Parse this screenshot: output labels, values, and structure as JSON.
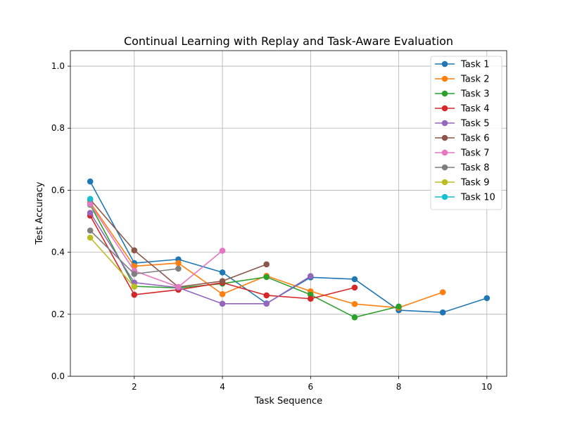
{
  "chart_data": {
    "type": "line",
    "title": "Continual Learning with Replay and Task-Aware Evaluation",
    "xlabel": "Task Sequence",
    "ylabel": "Test Accuracy",
    "xlim": [
      0.55,
      10.45
    ],
    "ylim": [
      0,
      1.05
    ],
    "xticks": [
      2,
      4,
      6,
      8,
      10
    ],
    "yticks": [
      0.0,
      0.2,
      0.4,
      0.6,
      0.8,
      1.0
    ],
    "grid": true,
    "legend": "top-right",
    "series": [
      {
        "name": "Task 1",
        "color": "#1f77b4",
        "x": [
          1,
          2,
          3,
          4,
          5,
          6,
          7,
          8,
          9,
          10
        ],
        "values": [
          0.628,
          0.365,
          0.377,
          0.335,
          0.235,
          0.319,
          0.313,
          0.213,
          0.206,
          0.252
        ]
      },
      {
        "name": "Task 2",
        "color": "#ff7f0e",
        "x": [
          1,
          2,
          3,
          4,
          5,
          6,
          7,
          8,
          9
        ],
        "values": [
          0.56,
          0.355,
          0.365,
          0.265,
          0.324,
          0.274,
          0.233,
          0.221,
          0.271
        ]
      },
      {
        "name": "Task 3",
        "color": "#2ca02c",
        "x": [
          1,
          2,
          3,
          4,
          5,
          6,
          7,
          8
        ],
        "values": [
          0.553,
          0.29,
          0.285,
          0.299,
          0.32,
          0.263,
          0.19,
          0.225
        ]
      },
      {
        "name": "Task 4",
        "color": "#d62728",
        "x": [
          1,
          2,
          3,
          4,
          5,
          6,
          7
        ],
        "values": [
          0.518,
          0.263,
          0.279,
          0.302,
          0.261,
          0.25,
          0.286
        ]
      },
      {
        "name": "Task 5",
        "color": "#9467bd",
        "x": [
          1,
          2,
          3,
          4,
          5,
          6
        ],
        "values": [
          0.527,
          0.302,
          0.286,
          0.234,
          0.234,
          0.323
        ]
      },
      {
        "name": "Task 6",
        "color": "#8c564b",
        "x": [
          1,
          2,
          3,
          4,
          5
        ],
        "values": [
          0.57,
          0.406,
          0.288,
          0.307,
          0.361
        ]
      },
      {
        "name": "Task 7",
        "color": "#e377c2",
        "x": [
          1,
          2,
          3,
          4
        ],
        "values": [
          0.555,
          0.34,
          0.288,
          0.405
        ]
      },
      {
        "name": "Task 8",
        "color": "#7f7f7f",
        "x": [
          1,
          2,
          3
        ],
        "values": [
          0.47,
          0.33,
          0.347
        ]
      },
      {
        "name": "Task 9",
        "color": "#bcbd22",
        "x": [
          1,
          2
        ],
        "values": [
          0.447,
          0.289
        ]
      },
      {
        "name": "Task 10",
        "color": "#17becf",
        "x": [
          1
        ],
        "values": [
          0.572
        ]
      }
    ]
  }
}
